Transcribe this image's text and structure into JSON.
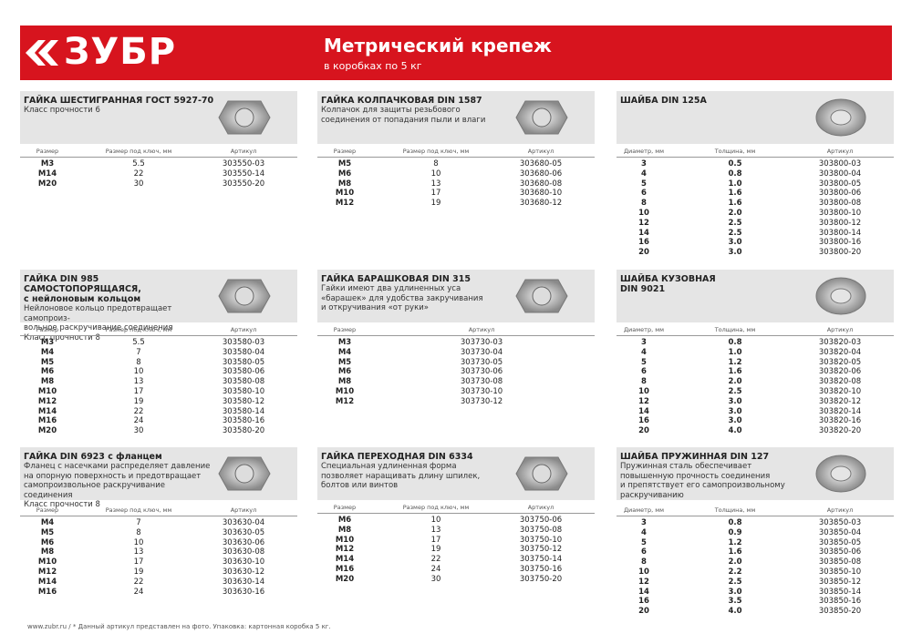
{
  "header": {
    "logo": "ЗУБР",
    "title": "Метрический крепеж",
    "subtitle": "в коробках по 5 кг"
  },
  "panels": [
    {
      "title": [
        "ГАЙКА ШЕСТИГРАННАЯ ГОСТ 5927-70"
      ],
      "description": [
        "Класс прочности 6"
      ],
      "columns": [
        "Размер",
        "Размер под ключ, мм",
        "Артикул"
      ],
      "rows": [
        [
          "M3",
          "5.5",
          "303550-03"
        ],
        [
          "M14",
          "22",
          "303550-14"
        ],
        [
          "M20",
          "30",
          "303550-20"
        ]
      ]
    },
    {
      "title": [
        "ГАЙКА КОЛПАЧКОВАЯ DIN 1587"
      ],
      "description": [
        "Колпачок для защиты резьбового",
        "соединения от попадания пыли и влаги"
      ],
      "columns": [
        "Размер",
        "Размер под ключ, мм",
        "Артикул"
      ],
      "rows": [
        [
          "M5",
          "8",
          "303680-05"
        ],
        [
          "M6",
          "10",
          "303680-06"
        ],
        [
          "M8",
          "13",
          "303680-08"
        ],
        [
          "M10",
          "17",
          "303680-10"
        ],
        [
          "M12",
          "19",
          "303680-12"
        ]
      ]
    },
    {
      "title": [
        "ШАЙБА DIN 125A"
      ],
      "description": [],
      "columns": [
        "Диаметр, мм",
        "Толщина, мм",
        "Артикул"
      ],
      "rows": [
        [
          "3",
          "0.5",
          "303800-03"
        ],
        [
          "4",
          "0.8",
          "303800-04"
        ],
        [
          "5",
          "1.0",
          "303800-05"
        ],
        [
          "6",
          "1.6",
          "303800-06"
        ],
        [
          "8",
          "1.6",
          "303800-08"
        ],
        [
          "10",
          "2.0",
          "303800-10"
        ],
        [
          "12",
          "2.5",
          "303800-12"
        ],
        [
          "14",
          "2.5",
          "303800-14"
        ],
        [
          "16",
          "3.0",
          "303800-16"
        ],
        [
          "20",
          "3.0",
          "303800-20"
        ]
      ]
    },
    {
      "title": [
        "ГАЙКА DIN 985 САМОСТОПОРЯЩАЯСЯ,",
        "с нейлоновым кольцом"
      ],
      "description": [
        "Нейлоновое кольцо предотвращает самопроиз-",
        "вольное раскручивание соединения",
        "Класс прочности 8"
      ],
      "columns": [
        "Размер",
        "Размер под ключ, мм",
        "Артикул"
      ],
      "rows": [
        [
          "M3",
          "5.5",
          "303580-03"
        ],
        [
          "M4",
          "7",
          "303580-04"
        ],
        [
          "M5",
          "8",
          "303580-05"
        ],
        [
          "M6",
          "10",
          "303580-06"
        ],
        [
          "M8",
          "13",
          "303580-08"
        ],
        [
          "M10",
          "17",
          "303580-10"
        ],
        [
          "M12",
          "19",
          "303580-12"
        ],
        [
          "M14",
          "22",
          "303580-14"
        ],
        [
          "M16",
          "24",
          "303580-16"
        ],
        [
          "M20",
          "30",
          "303580-20"
        ]
      ]
    },
    {
      "title": [
        "ГАЙКА БАРАШКОВАЯ DIN 315"
      ],
      "description": [
        "Гайки имеют два удлиненных уса",
        "«барашек» для удобства закручивания",
        "и откручивания «от руки»"
      ],
      "columns": [
        "Размер",
        "Артикул"
      ],
      "rows": [
        [
          "M3",
          "303730-03"
        ],
        [
          "M4",
          "303730-04"
        ],
        [
          "M5",
          "303730-05"
        ],
        [
          "M6",
          "303730-06"
        ],
        [
          "M8",
          "303730-08"
        ],
        [
          "M10",
          "303730-10"
        ],
        [
          "M12",
          "303730-12"
        ]
      ]
    },
    {
      "title": [
        "ШАЙБА КУЗОВНАЯ",
        "DIN 9021"
      ],
      "description": [],
      "columns": [
        "Диаметр, мм",
        "Толщина, мм",
        "Артикул"
      ],
      "rows": [
        [
          "3",
          "0.8",
          "303820-03"
        ],
        [
          "4",
          "1.0",
          "303820-04"
        ],
        [
          "5",
          "1.2",
          "303820-05"
        ],
        [
          "6",
          "1.6",
          "303820-06"
        ],
        [
          "8",
          "2.0",
          "303820-08"
        ],
        [
          "10",
          "2.5",
          "303820-10"
        ],
        [
          "12",
          "3.0",
          "303820-12"
        ],
        [
          "14",
          "3.0",
          "303820-14"
        ],
        [
          "16",
          "3.0",
          "303820-16"
        ],
        [
          "20",
          "4.0",
          "303820-20"
        ]
      ]
    },
    {
      "title": [
        "ГАЙКА DIN 6923 с фланцем"
      ],
      "description": [
        "Фланец с насечками распределяет давление",
        "на опорную поверхность и предотвращает",
        "самопроизвольное раскручивание соединения",
        "Класс прочности 8"
      ],
      "columns": [
        "Размер",
        "Размер под ключ, мм",
        "Артикул"
      ],
      "rows": [
        [
          "M4",
          "7",
          "303630-04"
        ],
        [
          "M5",
          "8",
          "303630-05"
        ],
        [
          "M6",
          "10",
          "303630-06"
        ],
        [
          "M8",
          "13",
          "303630-08"
        ],
        [
          "M10",
          "17",
          "303630-10"
        ],
        [
          "M12",
          "19",
          "303630-12"
        ],
        [
          "M14",
          "22",
          "303630-14"
        ],
        [
          "M16",
          "24",
          "303630-16"
        ]
      ]
    },
    {
      "title": [
        "ГАЙКА ПЕРЕХОДНАЯ DIN 6334"
      ],
      "description": [
        "Специальная удлиненная форма",
        "позволяет наращивать длину шпилек,",
        "болтов или винтов"
      ],
      "columns": [
        "Размер",
        "Размер под ключ, мм",
        "Артикул"
      ],
      "rows": [
        [
          "M6",
          "10",
          "303750-06"
        ],
        [
          "M8",
          "13",
          "303750-08"
        ],
        [
          "M10",
          "17",
          "303750-10"
        ],
        [
          "M12",
          "19",
          "303750-12"
        ],
        [
          "M14",
          "22",
          "303750-14"
        ],
        [
          "M16",
          "24",
          "303750-16"
        ],
        [
          "M20",
          "30",
          "303750-20"
        ]
      ]
    },
    {
      "title": [
        "ШАЙБА ПРУЖИННАЯ DIN 127"
      ],
      "description": [
        "Пружинная сталь обеспечивает",
        "повышенную прочность соединения",
        "и препятствует его самопроизвольному",
        "раскручиванию"
      ],
      "columns": [
        "Диаметр, мм",
        "Толщина, мм",
        "Артикул"
      ],
      "rows": [
        [
          "3",
          "0.8",
          "303850-03"
        ],
        [
          "4",
          "0.9",
          "303850-04"
        ],
        [
          "5",
          "1.2",
          "303850-05"
        ],
        [
          "6",
          "1.6",
          "303850-06"
        ],
        [
          "8",
          "2.0",
          "303850-08"
        ],
        [
          "10",
          "2.2",
          "303850-10"
        ],
        [
          "12",
          "2.5",
          "303850-12"
        ],
        [
          "14",
          "3.0",
          "303850-14"
        ],
        [
          "16",
          "3.5",
          "303850-16"
        ],
        [
          "20",
          "4.0",
          "303850-20"
        ]
      ]
    }
  ],
  "footer": {
    "site": "www.zubr.ru  /",
    "note": "* Данный артикул представлен на фото. Упаковка: картонная коробка 5 кг."
  }
}
